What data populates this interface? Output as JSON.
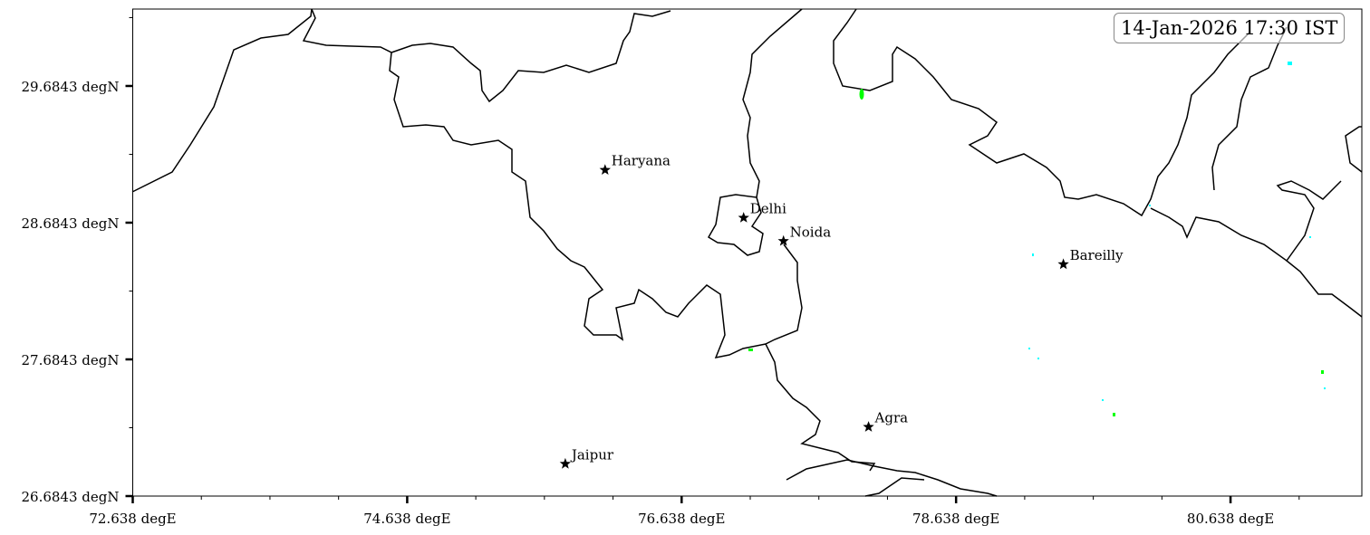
{
  "timestamp": "14-Jan-2026 17:30 IST",
  "map": {
    "lon_range": [
      72.638,
      81.595
    ],
    "lat_range": [
      26.6843,
      30.247
    ],
    "x_ticks": [
      {
        "value": 72.638,
        "label": "72.638 degE"
      },
      {
        "value": 74.638,
        "label": "74.638 degE"
      },
      {
        "value": 76.638,
        "label": "76.638 degE"
      },
      {
        "value": 78.638,
        "label": "78.638 degE"
      },
      {
        "value": 80.638,
        "label": "80.638 degE"
      }
    ],
    "y_ticks": [
      {
        "value": 26.6843,
        "label": "26.6843 degN"
      },
      {
        "value": 27.6843,
        "label": "27.6843 degN"
      },
      {
        "value": 28.6843,
        "label": "28.6843 degN"
      },
      {
        "value": 29.6843,
        "label": "29.6843 degN"
      }
    ],
    "minor_tick_step": 0.5,
    "cities": [
      {
        "name": "Haryana",
        "lon": 76.08,
        "lat": 29.07
      },
      {
        "name": "Delhi",
        "lon": 77.09,
        "lat": 28.72
      },
      {
        "name": "Noida",
        "lon": 77.38,
        "lat": 28.55
      },
      {
        "name": "Bareilly",
        "lon": 79.42,
        "lat": 28.38
      },
      {
        "name": "Agra",
        "lon": 78.0,
        "lat": 27.19
      },
      {
        "name": "Jaipur",
        "lon": 75.79,
        "lat": 26.92
      }
    ],
    "marker": "star",
    "colors": {
      "border": "#000000",
      "precip_light": "#00ffff",
      "precip_moderate": "#00ff00"
    }
  }
}
